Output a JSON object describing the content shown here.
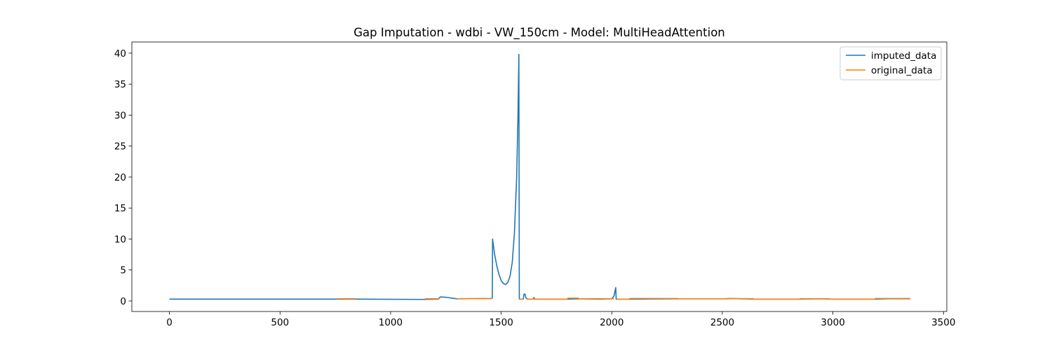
{
  "chart_data": {
    "type": "line",
    "title": "Gap Imputation - wdbi - VW_150cm - Model: MultiHeadAttention",
    "xlabel": "",
    "ylabel": "",
    "xlim": [
      -170,
      3515
    ],
    "ylim": [
      -1.7,
      41.8
    ],
    "xticks": [
      0,
      500,
      1000,
      1500,
      2000,
      2500,
      3000,
      3500
    ],
    "yticks": [
      0,
      5,
      10,
      15,
      20,
      25,
      30,
      35,
      40
    ],
    "xtick_labels": [
      "0",
      "500",
      "1000",
      "1500",
      "2000",
      "2500",
      "3000",
      "3500"
    ],
    "ytick_labels": [
      "0",
      "5",
      "10",
      "15",
      "20",
      "25",
      "30",
      "35",
      "40"
    ],
    "grid": false,
    "legend_position": "top-right",
    "series": [
      {
        "name": "imputed_data",
        "color": "#1f77b4",
        "points": [
          [
            0,
            0.3
          ],
          [
            760,
            0.3
          ],
          [
            840,
            0.3
          ],
          [
            1150,
            0.25
          ],
          [
            1215,
            0.3
          ],
          [
            1225,
            0.65
          ],
          [
            1250,
            0.6
          ],
          [
            1290,
            0.4
          ],
          [
            1300,
            0.35
          ],
          [
            1455,
            0.4
          ],
          [
            1460,
            0.45
          ],
          [
            1461,
            10.0
          ],
          [
            1470,
            7.6
          ],
          [
            1480,
            5.7
          ],
          [
            1490,
            4.3
          ],
          [
            1500,
            3.3
          ],
          [
            1510,
            2.8
          ],
          [
            1520,
            2.65
          ],
          [
            1530,
            3.0
          ],
          [
            1540,
            4.0
          ],
          [
            1550,
            6.2
          ],
          [
            1560,
            11.0
          ],
          [
            1570,
            20.0
          ],
          [
            1576,
            30.0
          ],
          [
            1580,
            39.8
          ],
          [
            1582,
            0.3
          ],
          [
            1600,
            0.3
          ],
          [
            1603,
            1.1
          ],
          [
            1608,
            1.1
          ],
          [
            1612,
            0.5
          ],
          [
            1620,
            0.3
          ],
          [
            1645,
            0.3
          ],
          [
            1648,
            0.55
          ],
          [
            1652,
            0.3
          ],
          [
            1800,
            0.3
          ],
          [
            1850,
            0.35
          ],
          [
            1950,
            0.3
          ],
          [
            2000,
            0.35
          ],
          [
            2010,
            0.8
          ],
          [
            2018,
            2.15
          ],
          [
            2020,
            0.3
          ],
          [
            2080,
            0.3
          ],
          [
            2300,
            0.35
          ],
          [
            2520,
            0.35
          ],
          [
            2530,
            0.4
          ],
          [
            2650,
            0.3
          ],
          [
            2850,
            0.3
          ],
          [
            2950,
            0.35
          ],
          [
            3000,
            0.3
          ],
          [
            3190,
            0.3
          ],
          [
            3250,
            0.35
          ],
          [
            3350,
            0.35
          ]
        ]
      },
      {
        "name": "original_data",
        "color": "#ff7f0e",
        "segments": [
          [
            [
              760,
              0.35
            ],
            [
              840,
              0.35
            ]
          ],
          [
            [
              1155,
              0.35
            ],
            [
              1222,
              0.35
            ]
          ],
          [
            [
              1300,
              0.35
            ],
            [
              1460,
              0.4
            ]
          ],
          [
            [
              1582,
              0.3
            ],
            [
              1600,
              0.3
            ]
          ],
          [
            [
              1615,
              0.3
            ],
            [
              1800,
              0.3
            ]
          ],
          [
            [
              1800,
              0.45
            ],
            [
              1850,
              0.45
            ]
          ],
          [
            [
              1850,
              0.35
            ],
            [
              2010,
              0.35
            ]
          ],
          [
            [
              2022,
              0.3
            ],
            [
              2080,
              0.3
            ]
          ],
          [
            [
              2080,
              0.4
            ],
            [
              2300,
              0.4
            ]
          ],
          [
            [
              2300,
              0.35
            ],
            [
              2520,
              0.35
            ]
          ],
          [
            [
              2520,
              0.4
            ],
            [
              2640,
              0.35
            ]
          ],
          [
            [
              2640,
              0.3
            ],
            [
              2850,
              0.3
            ]
          ],
          [
            [
              2850,
              0.35
            ],
            [
              2980,
              0.35
            ]
          ],
          [
            [
              2980,
              0.3
            ],
            [
              3190,
              0.3
            ]
          ],
          [
            [
              3190,
              0.4
            ],
            [
              3350,
              0.4
            ]
          ]
        ]
      }
    ]
  }
}
